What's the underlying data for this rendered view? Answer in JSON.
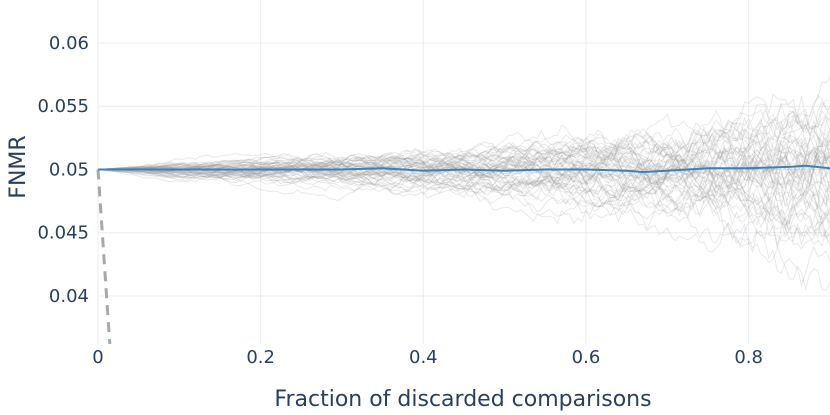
{
  "chart_data": {
    "type": "line",
    "title": "",
    "xlabel": "Fraction of discarded comparisons",
    "ylabel": "FNMR",
    "xlim": [
      0,
      0.9
    ],
    "ylim": [
      0.0362,
      0.0634
    ],
    "x_ticks": [
      0,
      0.2,
      0.4,
      0.6,
      0.8
    ],
    "x_tick_labels": [
      "0",
      "0.2",
      "0.4",
      "0.6",
      "0.8"
    ],
    "y_ticks": [
      0.04,
      0.045,
      0.05,
      0.055,
      0.06
    ],
    "y_tick_labels": [
      "0.04",
      "0.045",
      "0.05",
      "0.055",
      "0.06"
    ],
    "grid": true,
    "legend": "none",
    "colors": {
      "mean_line": "#3b82b8",
      "random_runs": "#9a9a9a",
      "reference_line": "#a8a8a8",
      "grid": "#e8ecf2",
      "text": "#2a3f5f"
    },
    "series": [
      {
        "style": "solid",
        "color": "#3b82b8",
        "x": [
          0,
          0.05,
          0.1,
          0.15,
          0.2,
          0.25,
          0.3,
          0.35,
          0.4,
          0.45,
          0.5,
          0.55,
          0.6,
          0.65,
          0.67,
          0.7,
          0.75,
          0.8,
          0.85,
          0.87,
          0.9
        ],
        "y": [
          0.05,
          0.05,
          0.05,
          0.05,
          0.05,
          0.05,
          0.05,
          0.0501,
          0.0499,
          0.05,
          0.0499,
          0.05,
          0.05,
          0.0499,
          0.0498,
          0.0499,
          0.0501,
          0.0501,
          0.0502,
          0.0503,
          0.0501
        ]
      },
      {
        "style": "dashed",
        "color": "#a8a8a8",
        "x": [
          0,
          0.0145
        ],
        "y": [
          0.05,
          0.0362
        ]
      },
      {
        "style": "band",
        "color": "#9a9a9a",
        "count": 60,
        "x": [
          0,
          0.1,
          0.2,
          0.3,
          0.4,
          0.5,
          0.6,
          0.7,
          0.8,
          0.9
        ],
        "spread": [
          0,
          0.0006,
          0.0009,
          0.0012,
          0.0016,
          0.0021,
          0.0027,
          0.0035,
          0.0046,
          0.0065
        ]
      }
    ]
  }
}
